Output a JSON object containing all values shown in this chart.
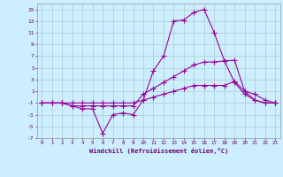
{
  "xlabel": "Windchill (Refroidissement éolien,°C)",
  "x": [
    0,
    1,
    2,
    3,
    4,
    5,
    6,
    7,
    8,
    9,
    10,
    11,
    12,
    13,
    14,
    15,
    16,
    17,
    18,
    19,
    20,
    21,
    22,
    23
  ],
  "line1": [
    -1,
    -1,
    -1,
    -1.5,
    -2,
    -2,
    -6.2,
    -3,
    -2.7,
    -3,
    -0.5,
    4.5,
    7,
    13,
    13.2,
    14.5,
    15,
    11,
    6.2,
    2.5,
    0.5,
    -0.5,
    -1,
    -1
  ],
  "line2": [
    -1,
    -1,
    -1,
    -1.5,
    -1.5,
    -1.5,
    -1.5,
    -1.5,
    -1.5,
    -1.5,
    0.5,
    1.5,
    2.5,
    3.5,
    4.5,
    5.5,
    6,
    6,
    6.2,
    6.3,
    1,
    -0.5,
    -1,
    -1
  ],
  "line3": [
    -1,
    -1,
    -1,
    -1,
    -1,
    -1,
    -1,
    -1,
    -1,
    -1,
    -0.5,
    0,
    0.5,
    1,
    1.5,
    2,
    2,
    2,
    2,
    2.7,
    1,
    0.5,
    -0.5,
    -1
  ],
  "line_color": "#990099",
  "bg_color": "#cceeff",
  "grid_color": "#aacccc",
  "ylim": [
    -7,
    16
  ],
  "yticks": [
    -7,
    -5,
    -3,
    -1,
    1,
    3,
    5,
    7,
    9,
    11,
    13,
    15
  ],
  "xlim": [
    -0.5,
    23.5
  ],
  "xticks": [
    0,
    1,
    2,
    3,
    4,
    5,
    6,
    7,
    8,
    9,
    10,
    11,
    12,
    13,
    14,
    15,
    16,
    17,
    18,
    19,
    20,
    21,
    22,
    23
  ],
  "marker_size": 2.0,
  "linewidth": 0.8
}
